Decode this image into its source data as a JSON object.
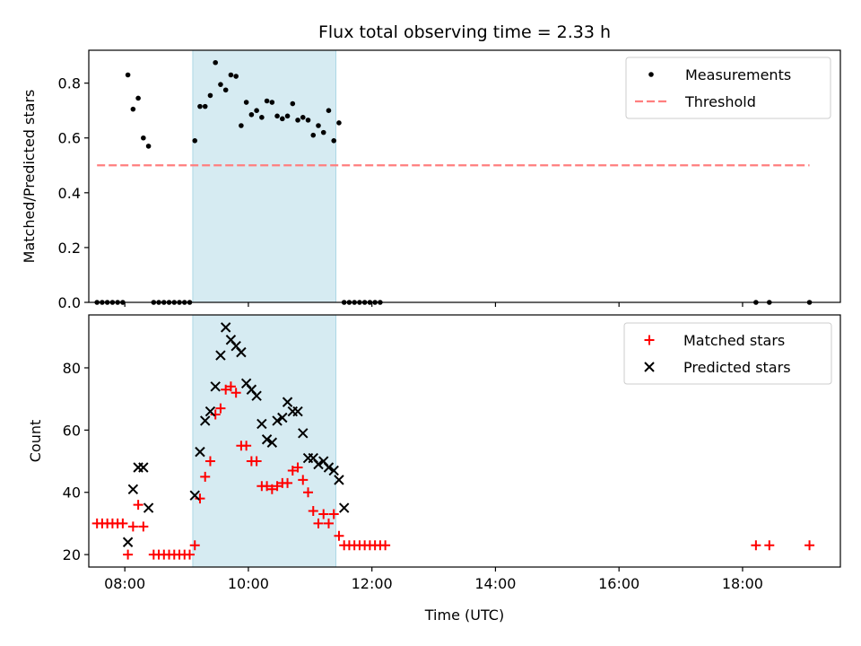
{
  "title": "Flux total observing time = 2.33 h",
  "xlabel": "Time (UTC)",
  "colors": {
    "measurements": "#000000",
    "threshold": "#ff7f7f",
    "matched": "#ff0000",
    "predicted": "#000000",
    "span": "#add8e6"
  },
  "chart_data": [
    {
      "type": "scatter",
      "ylabel": "Matched/Predicted stars",
      "xlim": [
        "07:25",
        "19:35"
      ],
      "ylim": [
        0,
        0.92
      ],
      "yticks": [
        0.0,
        0.2,
        0.4,
        0.6,
        0.8
      ],
      "yticklabels": [
        "0.0",
        "0.2",
        "0.4",
        "0.6",
        "0.8"
      ],
      "xticks": [
        "08:00",
        "10:00",
        "12:00",
        "14:00",
        "16:00",
        "18:00"
      ],
      "highlight_span": [
        "09:06",
        "11:25"
      ],
      "legend_position": "upper right",
      "legend": [
        "Measurements",
        "Threshold"
      ],
      "threshold": {
        "name": "Threshold",
        "value": 0.5,
        "x_range": [
          "07:33",
          "19:05"
        ]
      },
      "series": [
        {
          "name": "Measurements",
          "marker": "dot",
          "points": [
            [
              "07:33",
              0.0
            ],
            [
              "07:38",
              0.0
            ],
            [
              "07:43",
              0.0
            ],
            [
              "07:48",
              0.0
            ],
            [
              "07:53",
              0.0
            ],
            [
              "07:58",
              0.0
            ],
            [
              "08:03",
              0.83
            ],
            [
              "08:08",
              0.705
            ],
            [
              "08:13",
              0.745
            ],
            [
              "08:18",
              0.6
            ],
            [
              "08:23",
              0.57
            ],
            [
              "08:28",
              0.0
            ],
            [
              "08:33",
              0.0
            ],
            [
              "08:38",
              0.0
            ],
            [
              "08:43",
              0.0
            ],
            [
              "08:48",
              0.0
            ],
            [
              "08:53",
              0.0
            ],
            [
              "08:58",
              0.0
            ],
            [
              "09:03",
              0.0
            ],
            [
              "09:08",
              0.59
            ],
            [
              "09:13",
              0.715
            ],
            [
              "09:18",
              0.715
            ],
            [
              "09:23",
              0.755
            ],
            [
              "09:28",
              0.875
            ],
            [
              "09:33",
              0.795
            ],
            [
              "09:38",
              0.775
            ],
            [
              "09:43",
              0.83
            ],
            [
              "09:48",
              0.825
            ],
            [
              "09:53",
              0.645
            ],
            [
              "09:58",
              0.73
            ],
            [
              "10:03",
              0.685
            ],
            [
              "10:08",
              0.7
            ],
            [
              "10:13",
              0.675
            ],
            [
              "10:18",
              0.735
            ],
            [
              "10:23",
              0.73
            ],
            [
              "10:28",
              0.68
            ],
            [
              "10:33",
              0.67
            ],
            [
              "10:38",
              0.68
            ],
            [
              "10:43",
              0.725
            ],
            [
              "10:48",
              0.665
            ],
            [
              "10:53",
              0.675
            ],
            [
              "10:58",
              0.665
            ],
            [
              "11:03",
              0.61
            ],
            [
              "11:08",
              0.645
            ],
            [
              "11:13",
              0.62
            ],
            [
              "11:18",
              0.7
            ],
            [
              "11:23",
              0.59
            ],
            [
              "11:28",
              0.655
            ],
            [
              "11:33",
              0.0
            ],
            [
              "11:38",
              0.0
            ],
            [
              "11:43",
              0.0
            ],
            [
              "11:48",
              0.0
            ],
            [
              "11:53",
              0.0
            ],
            [
              "11:58",
              0.0
            ],
            [
              "12:03",
              0.0
            ],
            [
              "12:08",
              0.0
            ],
            [
              "18:13",
              0.0
            ],
            [
              "18:26",
              0.0
            ],
            [
              "19:05",
              0.0
            ]
          ]
        }
      ]
    },
    {
      "type": "scatter",
      "ylabel": "Count",
      "xlabel": "Time (UTC)",
      "xlim": [
        "07:25",
        "19:35"
      ],
      "ylim": [
        16,
        97
      ],
      "yticks": [
        20,
        40,
        60,
        80
      ],
      "yticklabels": [
        "20",
        "40",
        "60",
        "80"
      ],
      "xticks": [
        "08:00",
        "10:00",
        "12:00",
        "14:00",
        "16:00",
        "18:00"
      ],
      "xticklabels": [
        "08:00",
        "10:00",
        "12:00",
        "14:00",
        "16:00",
        "18:00"
      ],
      "highlight_span": [
        "09:06",
        "11:25"
      ],
      "legend_position": "upper right",
      "legend": [
        "Matched stars",
        "Predicted stars"
      ],
      "series": [
        {
          "name": "Matched stars",
          "marker": "plus",
          "points": [
            [
              "07:33",
              30
            ],
            [
              "07:38",
              30
            ],
            [
              "07:43",
              30
            ],
            [
              "07:48",
              30
            ],
            [
              "07:53",
              30
            ],
            [
              "07:58",
              30
            ],
            [
              "08:03",
              20
            ],
            [
              "08:08",
              29
            ],
            [
              "08:13",
              36
            ],
            [
              "08:18",
              29
            ],
            [
              "08:28",
              20
            ],
            [
              "08:33",
              20
            ],
            [
              "08:38",
              20
            ],
            [
              "08:43",
              20
            ],
            [
              "08:48",
              20
            ],
            [
              "08:53",
              20
            ],
            [
              "08:58",
              20
            ],
            [
              "09:03",
              20
            ],
            [
              "09:08",
              23
            ],
            [
              "09:13",
              38
            ],
            [
              "09:18",
              45
            ],
            [
              "09:23",
              50
            ],
            [
              "09:28",
              65
            ],
            [
              "09:33",
              67
            ],
            [
              "09:38",
              73
            ],
            [
              "09:43",
              74
            ],
            [
              "09:48",
              72
            ],
            [
              "09:53",
              55
            ],
            [
              "09:58",
              55
            ],
            [
              "10:03",
              50
            ],
            [
              "10:08",
              50
            ],
            [
              "10:13",
              42
            ],
            [
              "10:18",
              42
            ],
            [
              "10:23",
              41
            ],
            [
              "10:28",
              42
            ],
            [
              "10:33",
              43
            ],
            [
              "10:38",
              43
            ],
            [
              "10:43",
              47
            ],
            [
              "10:48",
              48
            ],
            [
              "10:53",
              44
            ],
            [
              "10:58",
              40
            ],
            [
              "11:03",
              34
            ],
            [
              "11:08",
              30
            ],
            [
              "11:13",
              33
            ],
            [
              "11:18",
              30
            ],
            [
              "11:23",
              33
            ],
            [
              "11:28",
              26
            ],
            [
              "11:33",
              23
            ],
            [
              "11:38",
              23
            ],
            [
              "11:43",
              23
            ],
            [
              "11:48",
              23
            ],
            [
              "11:53",
              23
            ],
            [
              "11:58",
              23
            ],
            [
              "12:03",
              23
            ],
            [
              "12:08",
              23
            ],
            [
              "12:13",
              23
            ],
            [
              "18:13",
              23
            ],
            [
              "18:26",
              23
            ],
            [
              "19:05",
              23
            ]
          ]
        },
        {
          "name": "Predicted stars",
          "marker": "x",
          "points": [
            [
              "08:03",
              24
            ],
            [
              "08:08",
              41
            ],
            [
              "08:13",
              48
            ],
            [
              "08:18",
              48
            ],
            [
              "08:23",
              35
            ],
            [
              "09:08",
              39
            ],
            [
              "09:13",
              53
            ],
            [
              "09:18",
              63
            ],
            [
              "09:23",
              66
            ],
            [
              "09:28",
              74
            ],
            [
              "09:33",
              84
            ],
            [
              "09:38",
              93
            ],
            [
              "09:43",
              89
            ],
            [
              "09:48",
              87
            ],
            [
              "09:53",
              85
            ],
            [
              "09:58",
              75
            ],
            [
              "10:03",
              73
            ],
            [
              "10:08",
              71
            ],
            [
              "10:13",
              62
            ],
            [
              "10:18",
              57
            ],
            [
              "10:23",
              56
            ],
            [
              "10:28",
              63
            ],
            [
              "10:33",
              64
            ],
            [
              "10:38",
              69
            ],
            [
              "10:43",
              66
            ],
            [
              "10:48",
              66
            ],
            [
              "10:53",
              59
            ],
            [
              "10:58",
              51
            ],
            [
              "11:03",
              51
            ],
            [
              "11:08",
              49
            ],
            [
              "11:13",
              50
            ],
            [
              "11:18",
              48
            ],
            [
              "11:23",
              47
            ],
            [
              "11:28",
              44
            ],
            [
              "11:33",
              35
            ]
          ]
        }
      ]
    }
  ]
}
